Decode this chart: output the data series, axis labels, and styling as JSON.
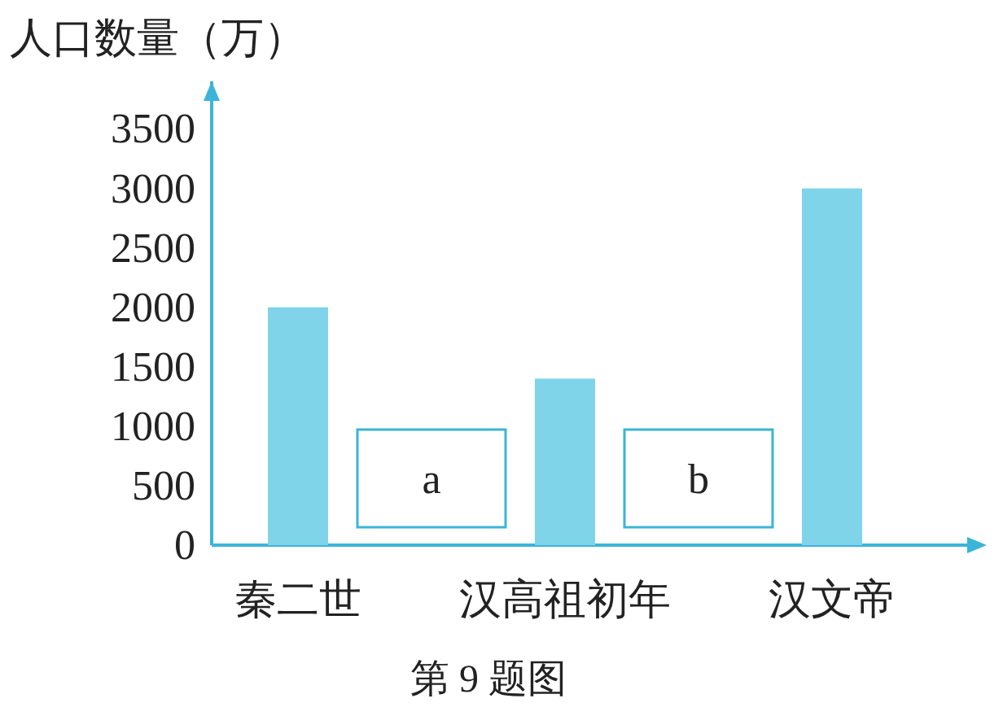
{
  "chart_data": {
    "type": "bar",
    "ylabel": "人口数量（万）",
    "categories": [
      "秦二世",
      null,
      "汉高祖初年",
      null,
      "汉文帝"
    ],
    "values": [
      2000,
      null,
      1400,
      null,
      3000
    ],
    "color": "#7fd4ea",
    "ylim": [
      0,
      3900
    ],
    "yticks": [
      0,
      500,
      1000,
      1500,
      2000,
      2500,
      3000,
      3500
    ],
    "grid": false,
    "annotations": [
      "a",
      "b",
      "第 9 题图"
    ]
  }
}
